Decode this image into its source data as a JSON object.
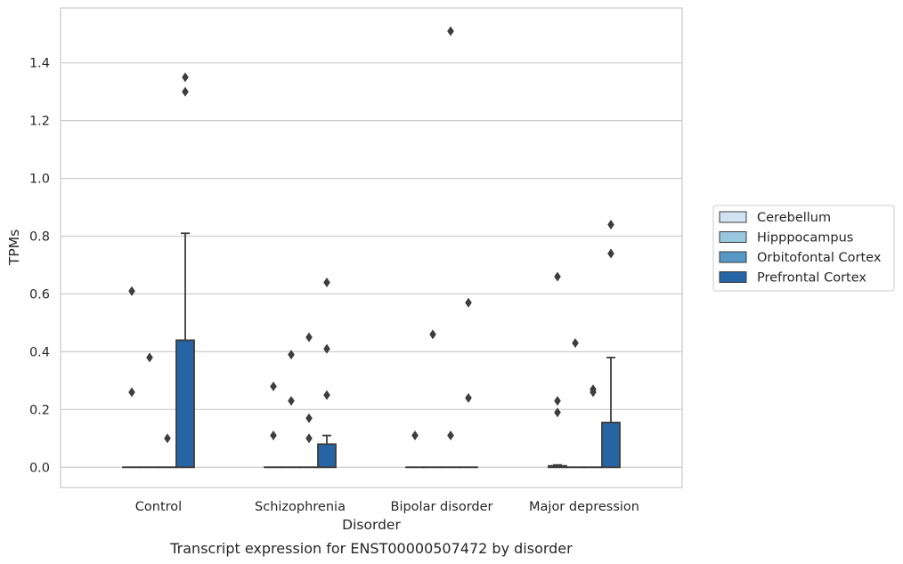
{
  "chart_data": {
    "type": "boxplot",
    "caption": "Transcript expression for ENST00000507472 by disorder",
    "xlabel": "Disorder",
    "ylabel": "TPMs",
    "ylim": [
      -0.07,
      1.59
    ],
    "yticks": [
      0.0,
      0.2,
      0.4,
      0.6,
      0.8,
      1.0,
      1.2,
      1.4
    ],
    "ytick_labels": [
      "0.0",
      "0.2",
      "0.4",
      "0.6",
      "0.8",
      "1.0",
      "1.2",
      "1.4"
    ],
    "grid": "horizontal",
    "legend_placement": "right",
    "categories": [
      "Control",
      "Schizophrenia",
      "Bipolar disorder",
      "Major depression"
    ],
    "series": [
      {
        "name": "Cerebellum",
        "color": "#d1e2f2"
      },
      {
        "name": "Hipppocampus",
        "color": "#9ac7e0"
      },
      {
        "name": "Orbitofontal Cortex",
        "color": "#5797c5"
      },
      {
        "name": "Prefrontal Cortex",
        "color": "#2565a5"
      }
    ],
    "boxes": [
      {
        "category": 0,
        "series": 0,
        "q1": 0,
        "median": 0,
        "q3": 0,
        "whisker_low": 0,
        "whisker_high": 0,
        "outliers": [
          0.61,
          0.26
        ]
      },
      {
        "category": 0,
        "series": 1,
        "q1": 0,
        "median": 0,
        "q3": 0,
        "whisker_low": 0,
        "whisker_high": 0,
        "outliers": [
          0.38
        ]
      },
      {
        "category": 0,
        "series": 2,
        "q1": 0,
        "median": 0,
        "q3": 0,
        "whisker_low": 0,
        "whisker_high": 0,
        "outliers": [
          0.1
        ]
      },
      {
        "category": 0,
        "series": 3,
        "q1": 0,
        "median": 0,
        "q3": 0.44,
        "whisker_low": 0,
        "whisker_high": 0.81,
        "outliers": [
          1.35,
          1.3
        ]
      },
      {
        "category": 1,
        "series": 0,
        "q1": 0,
        "median": 0,
        "q3": 0,
        "whisker_low": 0,
        "whisker_high": 0,
        "outliers": [
          0.28,
          0.11
        ]
      },
      {
        "category": 1,
        "series": 1,
        "q1": 0,
        "median": 0,
        "q3": 0,
        "whisker_low": 0,
        "whisker_high": 0,
        "outliers": [
          0.39,
          0.23
        ]
      },
      {
        "category": 1,
        "series": 2,
        "q1": 0,
        "median": 0,
        "q3": 0,
        "whisker_low": 0,
        "whisker_high": 0,
        "outliers": [
          0.45,
          0.17,
          0.1
        ]
      },
      {
        "category": 1,
        "series": 3,
        "q1": 0,
        "median": 0,
        "q3": 0.08,
        "whisker_low": 0,
        "whisker_high": 0.11,
        "outliers": [
          0.64,
          0.41,
          0.25
        ]
      },
      {
        "category": 2,
        "series": 0,
        "q1": 0,
        "median": 0,
        "q3": 0,
        "whisker_low": 0,
        "whisker_high": 0,
        "outliers": [
          0.11
        ]
      },
      {
        "category": 2,
        "series": 1,
        "q1": 0,
        "median": 0,
        "q3": 0,
        "whisker_low": 0,
        "whisker_high": 0,
        "outliers": [
          0.46
        ]
      },
      {
        "category": 2,
        "series": 2,
        "q1": 0,
        "median": 0,
        "q3": 0,
        "whisker_low": 0,
        "whisker_high": 0,
        "outliers": [
          1.51,
          0.11
        ]
      },
      {
        "category": 2,
        "series": 3,
        "q1": 0,
        "median": 0,
        "q3": 0,
        "whisker_low": 0,
        "whisker_high": 0,
        "outliers": [
          0.57,
          0.24
        ]
      },
      {
        "category": 3,
        "series": 0,
        "q1": 0,
        "median": 0,
        "q3": 0.005,
        "whisker_low": 0,
        "whisker_high": 0.008,
        "outliers": [
          0.66,
          0.23,
          0.19
        ]
      },
      {
        "category": 3,
        "series": 1,
        "q1": 0,
        "median": 0,
        "q3": 0,
        "whisker_low": 0,
        "whisker_high": 0,
        "outliers": [
          0.43
        ]
      },
      {
        "category": 3,
        "series": 2,
        "q1": 0,
        "median": 0,
        "q3": 0,
        "whisker_low": 0,
        "whisker_high": 0,
        "outliers": [
          0.27,
          0.26
        ]
      },
      {
        "category": 3,
        "series": 3,
        "q1": 0,
        "median": 0,
        "q3": 0.155,
        "whisker_low": 0,
        "whisker_high": 0.38,
        "outliers": [
          0.84,
          0.74
        ]
      }
    ]
  }
}
